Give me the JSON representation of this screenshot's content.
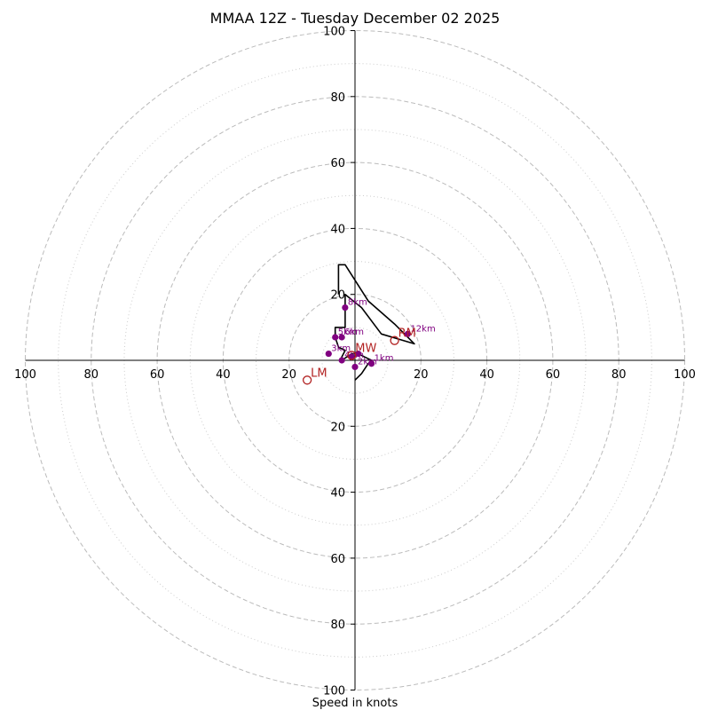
{
  "chart_data": {
    "type": "scatter",
    "subtype": "hodograph",
    "title": "MMAA 12Z - Tuesday December 02 2025",
    "xlabel": "Speed in knots",
    "axis_range": [
      -100,
      100
    ],
    "tick_labels": [
      "100",
      "80",
      "60",
      "40",
      "20",
      "20",
      "40",
      "60",
      "80",
      "100"
    ],
    "tick_values": [
      -100,
      -80,
      -60,
      -40,
      -20,
      20,
      40,
      60,
      80,
      100
    ],
    "y_tick_labels": [
      "100",
      "80",
      "60",
      "40",
      "20",
      "20",
      "40",
      "60",
      "80",
      "100"
    ],
    "y_tick_values": [
      100,
      80,
      60,
      40,
      20,
      -20,
      -40,
      -60,
      -80,
      -100
    ],
    "rings_dashed": [
      20,
      40,
      60,
      80,
      100
    ],
    "rings_dotted": [
      10,
      30,
      50,
      70,
      90
    ],
    "hodograph_line": [
      [
        0,
        -6
      ],
      [
        2,
        -4
      ],
      [
        4,
        -1
      ],
      [
        5,
        0
      ],
      [
        3,
        1
      ],
      [
        1,
        2
      ],
      [
        -1,
        2
      ],
      [
        -4,
        0
      ],
      [
        -4,
        1
      ],
      [
        -3,
        3
      ],
      [
        -5,
        4
      ],
      [
        -6,
        7
      ],
      [
        -6,
        10
      ],
      [
        -3,
        10
      ],
      [
        -3,
        15
      ],
      [
        -3,
        20
      ],
      [
        2,
        16
      ],
      [
        8,
        8
      ],
      [
        18,
        5
      ],
      [
        12,
        11
      ],
      [
        4,
        18
      ],
      [
        -3,
        29
      ],
      [
        -5,
        29
      ],
      [
        -5,
        20
      ]
    ],
    "height_points": [
      {
        "label": "1km",
        "u": 5,
        "v": -1
      },
      {
        "label": "2km",
        "u": 0,
        "v": -2
      },
      {
        "label": "3km",
        "u": -8,
        "v": 2
      },
      {
        "label": "4km",
        "u": -4,
        "v": 0
      },
      {
        "label": "5km",
        "u": -6,
        "v": 7
      },
      {
        "label": "6km",
        "u": -4,
        "v": 7
      },
      {
        "label": "8km",
        "u": -3,
        "v": 16
      },
      {
        "label": "12km",
        "u": 16,
        "v": 8
      },
      {
        "label": "",
        "u": -1,
        "v": 1
      },
      {
        "label": "",
        "u": 1,
        "v": 2
      }
    ],
    "motion_markers": [
      {
        "label": "RM",
        "u": 12,
        "v": 6
      },
      {
        "label": "LM",
        "u": -14.5,
        "v": -6
      },
      {
        "label": "MW",
        "u": -1,
        "v": 1.5
      }
    ],
    "colors": {
      "hodograph": "#000000",
      "height_points": "#800080",
      "motion": "#b22222",
      "rings": "#bbbbbb"
    }
  }
}
